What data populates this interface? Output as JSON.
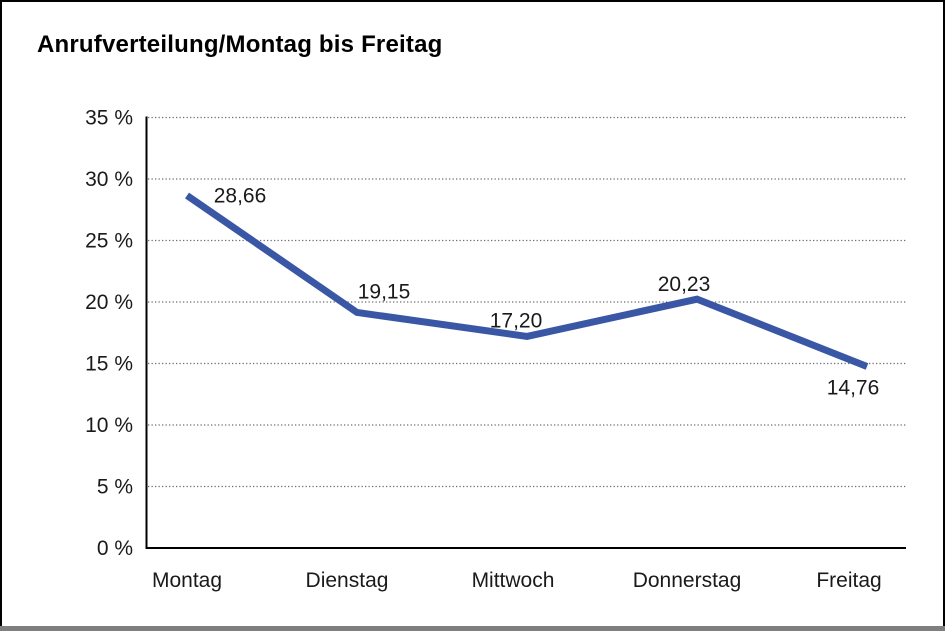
{
  "chart_data": {
    "type": "line",
    "title": "Anrufverteilung/Montag bis Freitag",
    "categories": [
      "Montag",
      "Dienstag",
      "Mittwoch",
      "Donnerstag",
      "Freitag"
    ],
    "values": [
      28.66,
      19.15,
      17.2,
      20.23,
      14.76
    ],
    "value_labels": [
      "28,66",
      "19,15",
      "17,20",
      "20,23",
      "14,76"
    ],
    "xlabel": "",
    "ylabel": "",
    "ylim": [
      0,
      35
    ],
    "ytick_step": 5,
    "ytick_labels": [
      "0 %",
      "5 %",
      "10 %",
      "15 %",
      "20 %",
      "25 %",
      "30 %",
      "35 %"
    ],
    "grid": "horizontal-dotted",
    "legend": "none",
    "colors": {
      "line": "#3A57A6",
      "grid": "#6E6E6E",
      "axis": "#000000",
      "text": "#1A1A1A",
      "frame_border": "#000000",
      "frame_shadow": "#7F7F7F"
    }
  }
}
